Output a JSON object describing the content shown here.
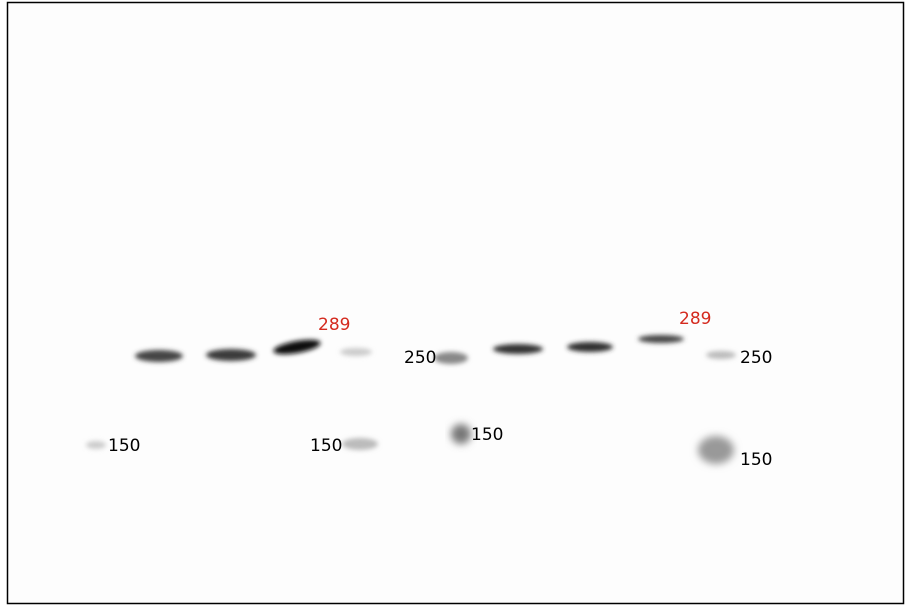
{
  "labels": {
    "weights": [
      "289",
      "289",
      "250",
      "250",
      "150",
      "150",
      "150",
      "150"
    ],
    "highlight_color": "#d42a1e"
  }
}
